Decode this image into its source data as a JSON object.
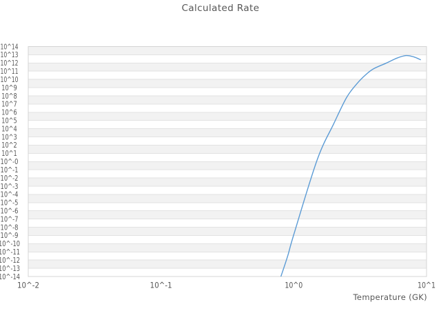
{
  "chart_data": {
    "type": "line",
    "title": "Calculated Rate",
    "xlabel": "Temperature (GK)",
    "ylabel": "",
    "x_scale": "log",
    "y_scale": "log",
    "x_range_log10": [
      -2,
      1
    ],
    "y_range_log10": [
      -14,
      14
    ],
    "x_tick_labels": [
      "10^-2",
      "10^-1",
      "10^0",
      "10^1"
    ],
    "x_tick_log10": [
      -2,
      -1,
      0,
      1
    ],
    "y_tick_labels": [
      "10^14",
      "10^13",
      "10^12",
      "10^11",
      "10^10",
      "10^9",
      "10^8",
      "10^7",
      "10^6",
      "10^5",
      "10^4",
      "10^3",
      "10^2",
      "10^1",
      "10^-0",
      "10^-1",
      "10^-2",
      "10^-3",
      "10^-4",
      "10^-5",
      "10^-6",
      "10^-7",
      "10^-8",
      "10^-9",
      "10^-10",
      "10^-11",
      "10^-12",
      "10^-13",
      "10^-14"
    ],
    "grid": "horizontal",
    "legend": false,
    "plot_background": "alternating-decade-bands",
    "series": [
      {
        "name": "Calculated Rate",
        "points": [
          {
            "T": 0.8,
            "log10_rate": -14.0
          },
          {
            "T": 0.9,
            "log10_rate": -11.5
          },
          {
            "T": 1.0,
            "log10_rate": -8.9
          },
          {
            "T": 1.5,
            "log10_rate": 0.2
          },
          {
            "T": 2.0,
            "log10_rate": 4.6
          },
          {
            "T": 2.5,
            "log10_rate": 7.8
          },
          {
            "T": 3.0,
            "log10_rate": 9.5
          },
          {
            "T": 3.5,
            "log10_rate": 10.6
          },
          {
            "T": 4.0,
            "log10_rate": 11.3
          },
          {
            "T": 5.0,
            "log10_rate": 12.0
          },
          {
            "T": 6.0,
            "log10_rate": 12.6
          },
          {
            "T": 7.0,
            "log10_rate": 12.9
          },
          {
            "T": 8.0,
            "log10_rate": 12.75
          },
          {
            "T": 9.0,
            "log10_rate": 12.4
          }
        ]
      }
    ]
  },
  "colors": {
    "line": "#5b9bd5",
    "band": "#f2f2f2",
    "grid_line": "#e2e2e2",
    "frame": "#d4d4d4",
    "text": "#565656",
    "background": "#ffffff"
  }
}
